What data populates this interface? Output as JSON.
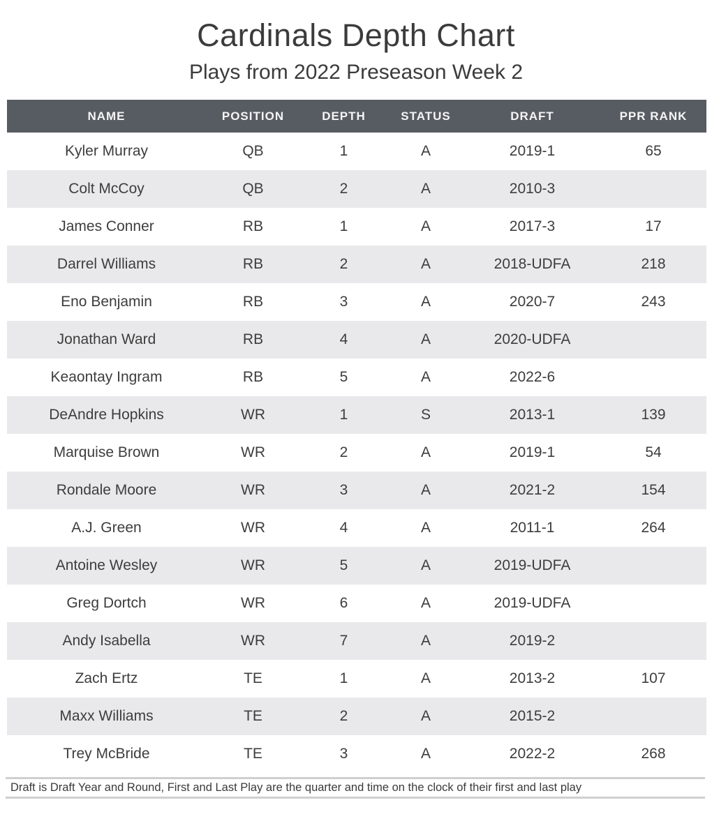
{
  "title": "Cardinals Depth Chart",
  "subtitle": "Plays from 2022 Preseason Week 2",
  "footnote": "Draft is Draft Year and Round, First and Last Play are the quarter and time on the clock of their first and last play",
  "colors": {
    "header_bg": "#575c63",
    "header_text": "#f5f5f5",
    "row_alt_bg": "#e9e9eb",
    "body_text": "#3d3d3d",
    "title_text": "#3b3b3b",
    "footnote_line": "#cfcfcf"
  },
  "chart_data": {
    "type": "table",
    "title": "Cardinals Depth Chart",
    "subtitle": "Plays from 2022 Preseason Week 2",
    "columns": [
      "NAME",
      "POSITION",
      "DEPTH",
      "STATUS",
      "DRAFT",
      "PPR RANK"
    ],
    "rows": [
      {
        "name": "Kyler Murray",
        "position": "QB",
        "depth": "1",
        "status": "A",
        "draft": "2019-1",
        "ppr_rank": "65"
      },
      {
        "name": "Colt McCoy",
        "position": "QB",
        "depth": "2",
        "status": "A",
        "draft": "2010-3",
        "ppr_rank": ""
      },
      {
        "name": "James Conner",
        "position": "RB",
        "depth": "1",
        "status": "A",
        "draft": "2017-3",
        "ppr_rank": "17"
      },
      {
        "name": "Darrel Williams",
        "position": "RB",
        "depth": "2",
        "status": "A",
        "draft": "2018-UDFA",
        "ppr_rank": "218"
      },
      {
        "name": "Eno Benjamin",
        "position": "RB",
        "depth": "3",
        "status": "A",
        "draft": "2020-7",
        "ppr_rank": "243"
      },
      {
        "name": "Jonathan Ward",
        "position": "RB",
        "depth": "4",
        "status": "A",
        "draft": "2020-UDFA",
        "ppr_rank": ""
      },
      {
        "name": "Keaontay Ingram",
        "position": "RB",
        "depth": "5",
        "status": "A",
        "draft": "2022-6",
        "ppr_rank": ""
      },
      {
        "name": "DeAndre Hopkins",
        "position": "WR",
        "depth": "1",
        "status": "S",
        "draft": "2013-1",
        "ppr_rank": "139"
      },
      {
        "name": "Marquise Brown",
        "position": "WR",
        "depth": "2",
        "status": "A",
        "draft": "2019-1",
        "ppr_rank": "54"
      },
      {
        "name": "Rondale Moore",
        "position": "WR",
        "depth": "3",
        "status": "A",
        "draft": "2021-2",
        "ppr_rank": "154"
      },
      {
        "name": "A.J. Green",
        "position": "WR",
        "depth": "4",
        "status": "A",
        "draft": "2011-1",
        "ppr_rank": "264"
      },
      {
        "name": "Antoine Wesley",
        "position": "WR",
        "depth": "5",
        "status": "A",
        "draft": "2019-UDFA",
        "ppr_rank": ""
      },
      {
        "name": "Greg Dortch",
        "position": "WR",
        "depth": "6",
        "status": "A",
        "draft": "2019-UDFA",
        "ppr_rank": ""
      },
      {
        "name": "Andy Isabella",
        "position": "WR",
        "depth": "7",
        "status": "A",
        "draft": "2019-2",
        "ppr_rank": ""
      },
      {
        "name": "Zach Ertz",
        "position": "TE",
        "depth": "1",
        "status": "A",
        "draft": "2013-2",
        "ppr_rank": "107"
      },
      {
        "name": "Maxx Williams",
        "position": "TE",
        "depth": "2",
        "status": "A",
        "draft": "2015-2",
        "ppr_rank": ""
      },
      {
        "name": "Trey McBride",
        "position": "TE",
        "depth": "3",
        "status": "A",
        "draft": "2022-2",
        "ppr_rank": "268"
      }
    ]
  }
}
